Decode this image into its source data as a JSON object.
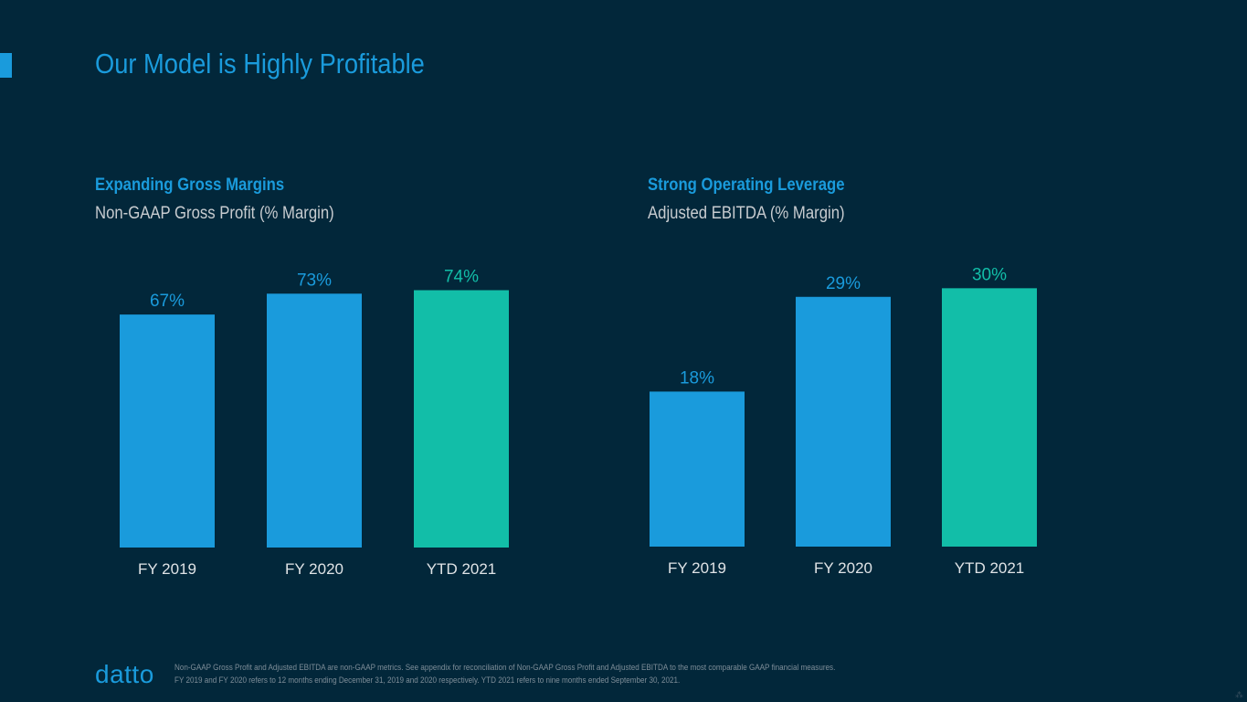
{
  "slide": {
    "title": "Our Model is Highly Profitable",
    "colors": {
      "background": "#02273a",
      "accent": "#1a9bdc",
      "highlight": "#12bea8"
    }
  },
  "left_panel": {
    "heading": "Expanding Gross Margins",
    "subheading": "Non-GAAP Gross Profit (% Margin)"
  },
  "right_panel": {
    "heading": "Strong Operating Leverage",
    "subheading": "Adjusted EBITDA (% Margin)"
  },
  "chart_data": [
    {
      "type": "bar",
      "title": "Non-GAAP Gross Profit (% Margin)",
      "categories": [
        "FY 2019",
        "FY 2020",
        "YTD 2021"
      ],
      "values": [
        67,
        73,
        74
      ],
      "value_labels": [
        "67%",
        "73%",
        "74%"
      ],
      "bar_colors": [
        "#1a9bdc",
        "#1a9bdc",
        "#12bea8"
      ],
      "ylim": [
        0,
        73.6
      ],
      "xlabel": "",
      "ylabel": "",
      "grid": false
    },
    {
      "type": "bar",
      "title": "Adjusted EBITDA (% Margin)",
      "categories": [
        "FY 2019",
        "FY 2020",
        "YTD 2021"
      ],
      "values": [
        18,
        29,
        30
      ],
      "value_labels": [
        "18%",
        "29%",
        "30%"
      ],
      "bar_colors": [
        "#1a9bdc",
        "#1a9bdc",
        "#12bea8"
      ],
      "ylim": [
        0,
        29.4
      ],
      "xlabel": "",
      "ylabel": "",
      "grid": false
    }
  ],
  "footer": {
    "logo": "datto",
    "footnote_line1": "Non-GAAP Gross Profit and Adjusted EBITDA are non-GAAP metrics. See appendix for reconciliation of Non-GAAP Gross Profit and Adjusted EBITDA to the most comparable GAAP financial measures.",
    "footnote_line2": "FY 2019 and FY 2020  refers to 12 months ending December 31, 2019 and 2020 respectively.   YTD 2021 refers to nine months ended September 30, 2021.",
    "corner_glyph": "⁂"
  }
}
